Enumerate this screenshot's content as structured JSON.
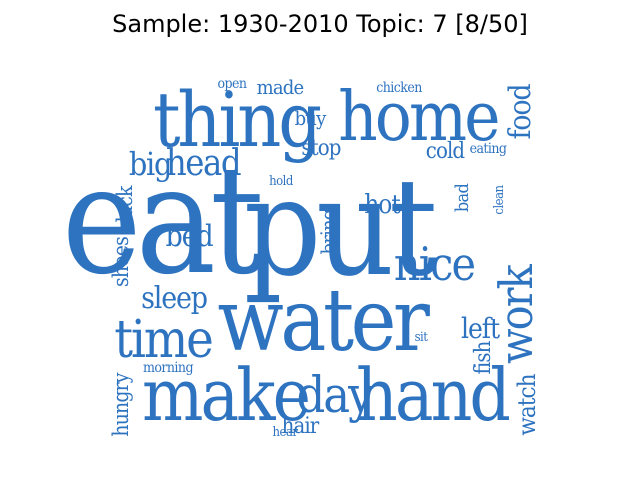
{
  "title": "Sample: 1930-2010 Topic: 7 [8/50]",
  "colors": {
    "word": "#2e73c0",
    "background": "#ffffff"
  },
  "words": [
    {
      "text": "eat"
    },
    {
      "text": "put"
    },
    {
      "text": "water"
    },
    {
      "text": "thing"
    },
    {
      "text": "home"
    },
    {
      "text": "make"
    },
    {
      "text": "hand"
    },
    {
      "text": "day"
    },
    {
      "text": "time"
    },
    {
      "text": "nice"
    },
    {
      "text": "work"
    },
    {
      "text": "head"
    },
    {
      "text": "big"
    },
    {
      "text": "sleep"
    },
    {
      "text": "food"
    },
    {
      "text": "bed"
    },
    {
      "text": "left"
    },
    {
      "text": "hot"
    },
    {
      "text": "cold"
    },
    {
      "text": "stop"
    },
    {
      "text": "hair"
    },
    {
      "text": "watch"
    },
    {
      "text": "fish"
    },
    {
      "text": "shoes"
    },
    {
      "text": "black"
    },
    {
      "text": "bring"
    },
    {
      "text": "hungry"
    },
    {
      "text": "buy"
    },
    {
      "text": "made"
    },
    {
      "text": "bad"
    },
    {
      "text": "morning"
    },
    {
      "text": "open"
    },
    {
      "text": "chicken"
    },
    {
      "text": "eating"
    },
    {
      "text": "hold"
    },
    {
      "text": "clean"
    },
    {
      "text": "sit"
    },
    {
      "text": "hear"
    }
  ]
}
